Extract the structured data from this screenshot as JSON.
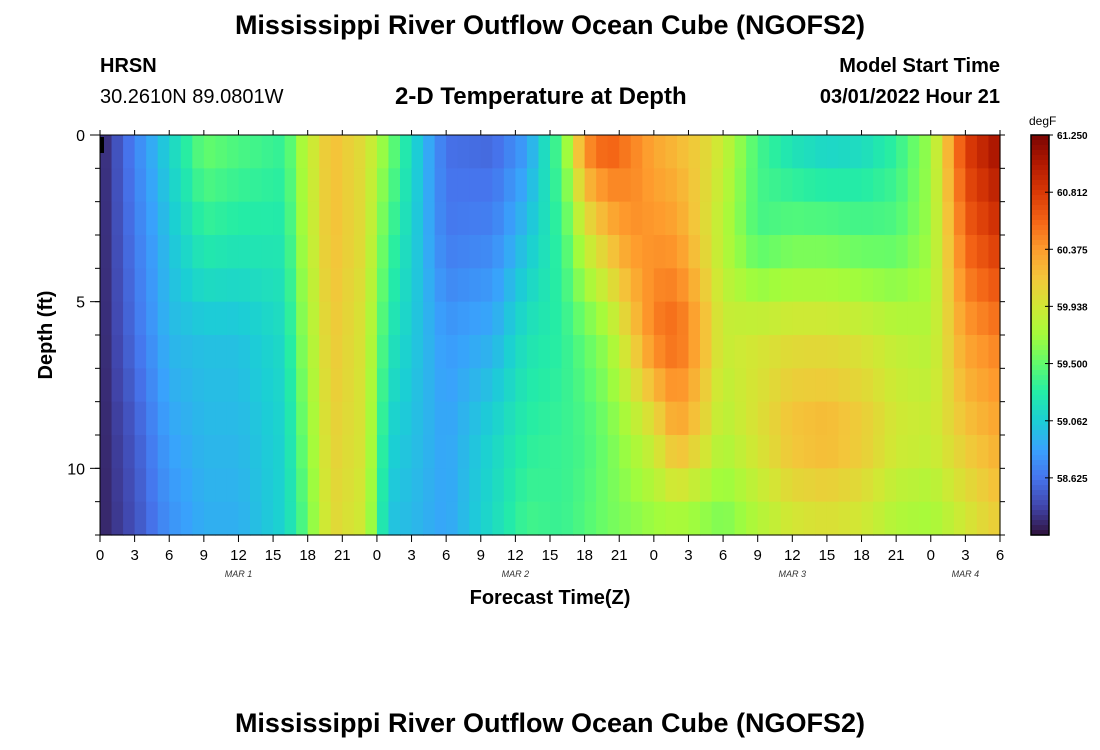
{
  "header": {
    "title": "Mississippi River Outflow Ocean Cube (NGOFS2)",
    "station": "HRSN",
    "coords": "30.2610N  89.0801W",
    "subtitle": "2-D Temperature at Depth",
    "model_start_label": "Model Start Time",
    "model_start_value": "03/01/2022 Hour 21"
  },
  "footer": {
    "title": "Mississippi River Outflow Ocean Cube (NGOFS2)"
  },
  "chart_data": {
    "type": "heatmap",
    "title": "2-D Temperature at Depth",
    "xlabel": "Forecast Time(Z)",
    "ylabel": "Depth (ft)",
    "x_range_hours": [
      0,
      78
    ],
    "y_range": [
      0,
      12
    ],
    "y_ticks": [
      0,
      5,
      10
    ],
    "y_tick_labels": [
      "0",
      "5",
      "10"
    ],
    "y_minor_step": 1,
    "x_tick_labels": [
      "0",
      "3",
      "6",
      "9",
      "12",
      "15",
      "18",
      "21",
      "0",
      "3",
      "6",
      "9",
      "12",
      "15",
      "18",
      "21",
      "0",
      "3",
      "6",
      "9",
      "12",
      "15",
      "18",
      "21",
      "0",
      "3",
      "6"
    ],
    "date_labels": [
      {
        "label": "MAR 1",
        "hour": 12
      },
      {
        "label": "MAR 2",
        "hour": 36
      },
      {
        "label": "MAR 3",
        "hour": 60
      },
      {
        "label": "MAR 4",
        "hour": 75
      }
    ],
    "colorbar": {
      "unit": "degF",
      "min": 58.1875,
      "max": 61.25,
      "tick_values": [
        58.625,
        59.062,
        59.5,
        59.938,
        60.375,
        60.812,
        61.25
      ],
      "tick_labels": [
        "58.625",
        "59.062",
        "59.500",
        "59.938",
        "60.375",
        "60.812",
        "61.250"
      ],
      "colormap": [
        "#30123b",
        "#4145ab",
        "#4675ed",
        "#39a2fc",
        "#1bcfd4",
        "#24eca6",
        "#61fc6c",
        "#a4fc3b",
        "#d1e834",
        "#f3c63a",
        "#fe9b2d",
        "#f36315",
        "#d93806",
        "#b11901",
        "#7a0402"
      ]
    },
    "profile_hours": [
      0,
      3,
      6,
      9,
      12,
      16,
      17.5,
      20,
      23,
      25,
      27,
      30,
      34,
      37,
      40,
      42,
      44,
      46,
      48,
      50,
      52,
      54,
      57,
      60,
      63,
      66,
      69,
      72,
      75,
      78
    ],
    "profile_depths": [
      0,
      3,
      6,
      9,
      12
    ],
    "temperatures": [
      [
        58.25,
        58.25,
        58.25,
        58.25,
        58.25
      ],
      [
        58.7,
        58.65,
        58.6,
        58.5,
        58.45
      ],
      [
        59.1,
        59.0,
        58.95,
        58.85,
        58.75
      ],
      [
        59.55,
        59.3,
        59.0,
        58.95,
        58.9
      ],
      [
        59.45,
        59.25,
        59.0,
        58.95,
        58.9
      ],
      [
        59.35,
        59.25,
        59.15,
        59.1,
        59.1
      ],
      [
        59.75,
        59.7,
        59.6,
        59.5,
        59.4
      ],
      [
        60.2,
        60.2,
        60.15,
        60.1,
        60.05
      ],
      [
        60.0,
        60.0,
        59.95,
        59.95,
        59.9
      ],
      [
        59.6,
        59.4,
        59.25,
        59.1,
        59.0
      ],
      [
        59.15,
        59.1,
        59.05,
        59.0,
        58.95
      ],
      [
        58.6,
        58.65,
        58.8,
        58.85,
        58.85
      ],
      [
        58.55,
        58.7,
        58.9,
        59.1,
        59.15
      ],
      [
        58.8,
        59.0,
        59.2,
        59.3,
        59.4
      ],
      [
        59.5,
        59.35,
        59.3,
        59.35,
        59.35
      ],
      [
        60.5,
        59.9,
        59.5,
        59.4,
        59.45
      ],
      [
        60.7,
        60.2,
        59.7,
        59.55,
        59.55
      ],
      [
        60.5,
        60.4,
        60.1,
        59.75,
        59.6
      ],
      [
        60.3,
        60.4,
        60.5,
        59.95,
        59.65
      ],
      [
        60.2,
        60.35,
        60.6,
        60.3,
        59.65
      ],
      [
        60.1,
        60.1,
        60.3,
        60.1,
        59.6
      ],
      [
        59.9,
        59.8,
        59.9,
        59.8,
        59.55
      ],
      [
        59.4,
        59.4,
        59.95,
        60.0,
        59.75
      ],
      [
        59.15,
        59.5,
        60.0,
        60.2,
        59.9
      ],
      [
        59.05,
        59.5,
        60.0,
        60.25,
        59.95
      ],
      [
        59.1,
        59.45,
        59.95,
        60.15,
        59.9
      ],
      [
        59.3,
        59.45,
        59.85,
        59.95,
        59.75
      ],
      [
        59.7,
        59.7,
        59.8,
        59.9,
        59.7
      ],
      [
        60.8,
        60.6,
        60.35,
        60.15,
        59.9
      ],
      [
        61.15,
        60.85,
        60.5,
        60.3,
        60.1
      ]
    ]
  }
}
